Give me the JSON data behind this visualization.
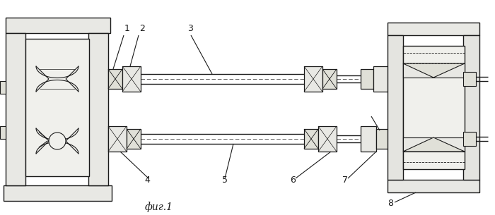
{
  "bg_color": "#ffffff",
  "line_color": "#1a1a1a",
  "title": "фиг.1",
  "figsize": [
    7.0,
    3.05
  ],
  "dpi": 100
}
